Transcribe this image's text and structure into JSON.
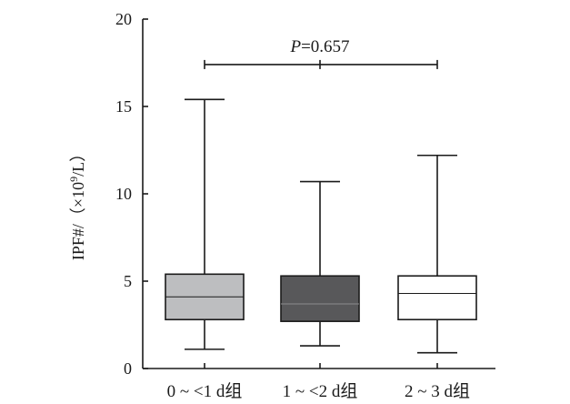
{
  "chart_data": {
    "type": "box",
    "ylabel_prefix": "IPF#/（×10",
    "ylabel_exp": "9",
    "ylabel_suffix": "/L）",
    "ylim": [
      0,
      20
    ],
    "yticks": [
      "0",
      "5",
      "10",
      "15",
      "20"
    ],
    "categories": [
      "0 ~ <1 d组",
      "1 ~ <2 d组",
      "2 ~ 3 d组"
    ],
    "boxes": [
      {
        "min": 1.1,
        "q1": 2.8,
        "median": 4.1,
        "q3": 5.4,
        "max": 15.4,
        "fill": "#bdbec0"
      },
      {
        "min": 1.3,
        "q1": 2.7,
        "median": 3.7,
        "q3": 5.3,
        "max": 10.7,
        "fill": "#58585a"
      },
      {
        "min": 0.9,
        "q1": 2.8,
        "median": 4.3,
        "q3": 5.3,
        "max": 12.2,
        "fill": "#ffffff"
      }
    ],
    "significance": {
      "y": 17.4,
      "p_italic": "P",
      "p_text": "=0.657"
    }
  }
}
